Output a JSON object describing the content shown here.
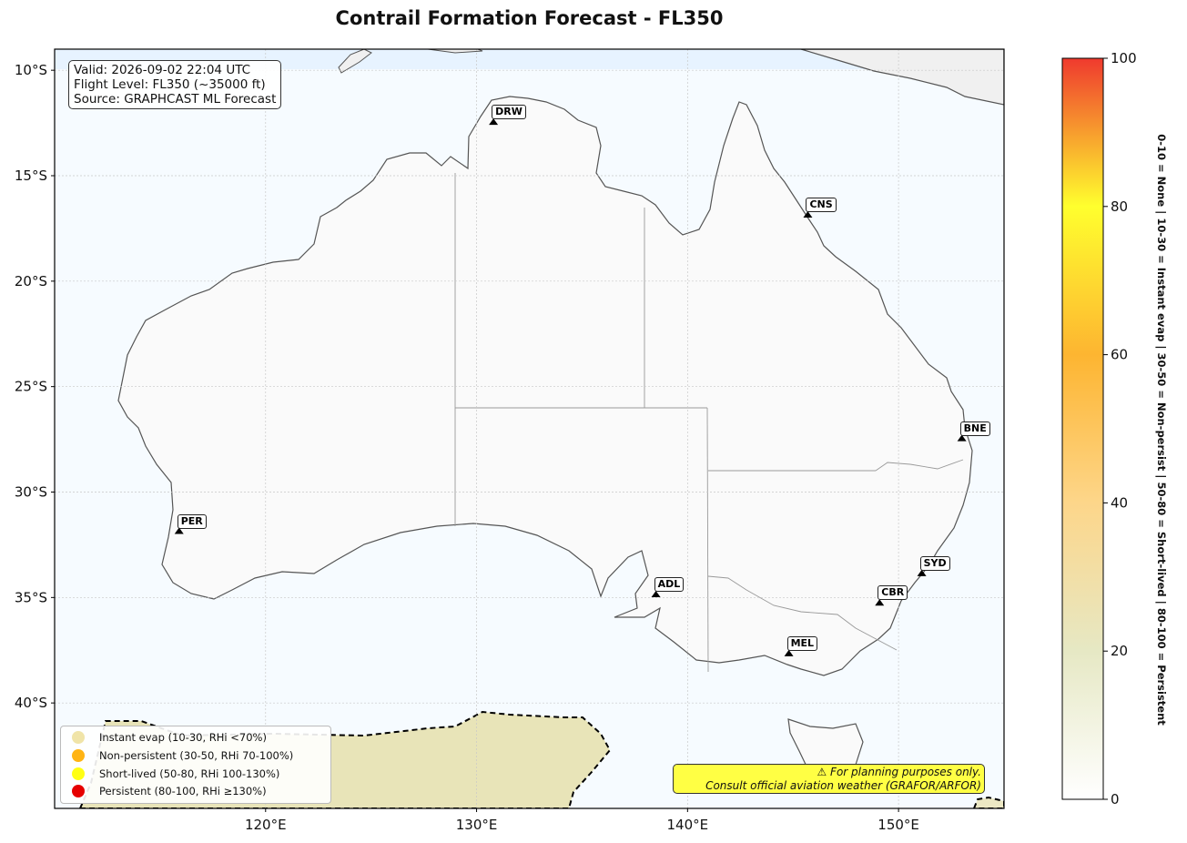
{
  "title": "Contrail Formation Forecast - FL350",
  "info": {
    "valid": "Valid: 2026-09-02 22:04 UTC",
    "flight_level": "Flight Level: FL350 (~35000 ft)",
    "source": "Source: GRAPHCAST ML Forecast"
  },
  "map": {
    "lon_range": [
      110,
      155
    ],
    "lat_range": [
      -45,
      -9
    ],
    "lon_ticks": [
      {
        "value": 120,
        "label": "120°E"
      },
      {
        "value": 130,
        "label": "130°E"
      },
      {
        "value": 140,
        "label": "140°E"
      },
      {
        "value": 150,
        "label": "150°E"
      }
    ],
    "lat_ticks": [
      {
        "value": -10,
        "label": "10°S"
      },
      {
        "value": -15,
        "label": "15°S"
      },
      {
        "value": -20,
        "label": "20°S"
      },
      {
        "value": -25,
        "label": "25°S"
      },
      {
        "value": -30,
        "label": "30°S"
      },
      {
        "value": -35,
        "label": "35°S"
      },
      {
        "value": -40,
        "label": "40°S"
      }
    ],
    "colors": {
      "ocean": "#f6fbff",
      "land": "#fafafa",
      "coast": "#555555",
      "contrail_low": "#e8e4b8"
    }
  },
  "cities": [
    {
      "code": "DRW",
      "lon": 130.8,
      "lat": -12.5
    },
    {
      "code": "CNS",
      "lon": 145.7,
      "lat": -16.9
    },
    {
      "code": "BNE",
      "lon": 153.0,
      "lat": -27.5
    },
    {
      "code": "PER",
      "lon": 115.9,
      "lat": -31.9
    },
    {
      "code": "ADL",
      "lon": 138.5,
      "lat": -34.9
    },
    {
      "code": "SYD",
      "lon": 151.1,
      "lat": -33.9
    },
    {
      "code": "CBR",
      "lon": 149.1,
      "lat": -35.3
    },
    {
      "code": "MEL",
      "lon": 144.8,
      "lat": -37.7
    }
  ],
  "legend": [
    {
      "label": "Instant evap (10-30, RHi <70%)",
      "color": "#f0e4a8"
    },
    {
      "label": "Non-persistent (30-50, RHi 70-100%)",
      "color": "#ffb414"
    },
    {
      "label": "Short-lived (50-80, RHi 100-130%)",
      "color": "#ffff14"
    },
    {
      "label": "Persistent (80-100, RHi ≥130%)",
      "color": "#e60000"
    }
  ],
  "disclaimer": {
    "line1": "⚠ For planning purposes only.",
    "line2": "Consult official aviation weather (GRAFOR/ARFOR)"
  },
  "colorbar": {
    "range": [
      0,
      100
    ],
    "ticks": [
      0,
      20,
      40,
      60,
      80,
      100
    ],
    "tick_labels": [
      "0",
      "20",
      "40",
      "60",
      "80",
      "100"
    ],
    "label": "0-10 = None  |  10-30 = Instant evap  |  30-50 = Non-persist  |  50-80 = Short-lived  |  80-100 = Persistent",
    "stops": [
      {
        "value": 0,
        "color": "#ffffff"
      },
      {
        "value": 20,
        "color": "#e6e8c4"
      },
      {
        "value": 40,
        "color": "#fdd68a"
      },
      {
        "value": 60,
        "color": "#fdb531"
      },
      {
        "value": 80,
        "color": "#ffff2e"
      },
      {
        "value": 100,
        "color": "#ef3a2e"
      }
    ]
  }
}
